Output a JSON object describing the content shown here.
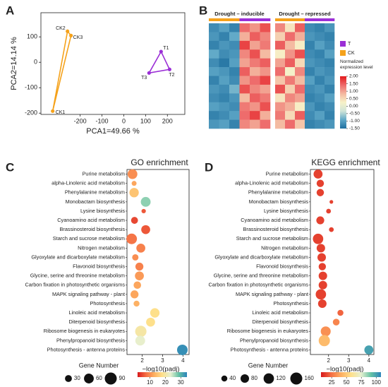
{
  "chart_data": [
    {
      "type": "scatter",
      "label": "A",
      "x_label": "PCA1=49.66 %",
      "y_label": "PCA2=14.14 %",
      "xlim": [
        -380,
        280
      ],
      "ylim": [
        -205,
        195
      ],
      "xticks": [
        -200,
        -100,
        0,
        100,
        200
      ],
      "yticks": [
        -200,
        -100,
        0,
        100
      ],
      "series": [
        {
          "name": "CK",
          "color": "#f5a21b",
          "labels": [
            "CK1",
            "CK2",
            "CK3"
          ],
          "x": [
            -326,
            -258,
            -242
          ],
          "y": [
            -192,
            122,
            105
          ]
        },
        {
          "name": "T",
          "color": "#9b2fd6",
          "labels": [
            "T1",
            "T2",
            "T3"
          ],
          "x": [
            171,
            210,
            116
          ],
          "y": [
            42,
            -28,
            -42
          ]
        }
      ]
    },
    {
      "type": "heatmap",
      "label": "B",
      "legend": [
        {
          "name": "T",
          "color": "#9b2fd6"
        },
        {
          "name": "CK",
          "color": "#f5a21b"
        }
      ],
      "column_colors": [
        "#f5a21b",
        "#f5a21b",
        "#f5a21b",
        "#9b2fd6",
        "#9b2fd6",
        "#9b2fd6"
      ],
      "colorbar": {
        "title": "Normalized expression level",
        "lim": [
          -1.5,
          2.0
        ],
        "colors": [
          "#1f6f9f",
          "#5fa8c8",
          "#cfe4d8",
          "#f7f2c8",
          "#f4b8a0",
          "#ee6a6a",
          "#e31a1c"
        ],
        "ticks": [
          {
            "value": 2,
            "label": "2.00"
          },
          {
            "value": 1.5,
            "label": "1.50"
          },
          {
            "value": 1,
            "label": "1.00"
          },
          {
            "value": 0.5,
            "label": "0.50"
          },
          {
            "value": 0,
            "label": "0.00"
          },
          {
            "value": -0.5,
            "label": "-0.50"
          },
          {
            "value": -1,
            "label": "-1.00"
          },
          {
            "value": -1.5,
            "label": "-1.50"
          }
        ]
      },
      "blocks": [
        {
          "title": "Drought – inducible",
          "rows": [
            [
              -1.2,
              -1.0,
              -1.3,
              1.4,
              1.1,
              1.6
            ],
            [
              -1.1,
              -1.3,
              -0.9,
              0.9,
              1.5,
              1.2
            ],
            [
              -1.3,
              -1.1,
              -1.2,
              1.7,
              1.0,
              1.3
            ],
            [
              -0.9,
              -1.2,
              -1.1,
              1.2,
              1.6,
              0.8
            ],
            [
              -1.2,
              -1.4,
              -1.0,
              1.0,
              1.3,
              1.5
            ],
            [
              -1.0,
              -1.1,
              -1.3,
              1.5,
              0.9,
              1.1
            ],
            [
              -1.3,
              -1.0,
              -1.2,
              1.1,
              1.4,
              1.7
            ],
            [
              -1.1,
              -1.2,
              -0.8,
              1.6,
              1.2,
              1.0
            ],
            [
              -1.2,
              -1.3,
              -1.1,
              0.8,
              1.5,
              1.3
            ],
            [
              -1.0,
              -1.1,
              -1.2,
              1.3,
              1.1,
              1.6
            ],
            [
              -1.3,
              -1.2,
              -1.0,
              1.4,
              1.7,
              0.9
            ],
            [
              -1.1,
              -1.0,
              -1.3,
              1.2,
              1.0,
              1.4
            ]
          ]
        },
        {
          "title": "Drought – repressed",
          "rows": [
            [
              1.2,
              0.4,
              1.5,
              -1.2,
              -1.3,
              -1.1
            ],
            [
              0.6,
              1.4,
              0.9,
              -1.1,
              -1.2,
              -1.3
            ],
            [
              1.5,
              0.8,
              0.3,
              -1.3,
              -1.0,
              -1.2
            ],
            [
              0.3,
              1.1,
              1.6,
              -1.2,
              -1.3,
              -1.0
            ],
            [
              1.0,
              1.5,
              0.5,
              -1.1,
              -1.2,
              -1.3
            ],
            [
              1.4,
              0.2,
              1.2,
              -1.3,
              -1.1,
              -1.2
            ],
            [
              0.7,
              1.3,
              0.8,
              -1.0,
              -1.3,
              -1.1
            ],
            [
              1.6,
              0.6,
              1.4,
              -1.2,
              -1.1,
              -1.3
            ],
            [
              0.4,
              1.2,
              1.0,
              -1.3,
              -1.2,
              -1.0
            ],
            [
              1.1,
              0.9,
              0.3,
              -1.1,
              -1.3,
              -1.2
            ],
            [
              1.3,
              0.5,
              1.5,
              -1.2,
              -1.0,
              -1.3
            ],
            [
              0.8,
              1.4,
              0.7,
              -1.3,
              -1.2,
              -1.1
            ]
          ]
        }
      ]
    },
    {
      "type": "bubble",
      "label": "C",
      "title": "GO enrichment",
      "x_label": "−log10(padj)",
      "categories": [
        "Purine metabolism",
        "alpha-Linolenic acid metabolism",
        "Phenylalanine metabolism",
        "Monobactam biosynthesis",
        "Lysine biosynthesis",
        "Cyanoamino acid metabolism",
        "Brassinosteroid biosynthesis",
        "Starch and sucrose metabolism",
        "Nitrogen metabolism",
        "Glyoxylate and dicarboxylate metabolism",
        "Flavonoid biosynthesis",
        "Glycine, serine and threonine metabolism",
        "Carbon fixation in photosynthetic organisms",
        "MAPK signaling pathway - plant",
        "Photosynthesis",
        "Linoleic acid metabolism",
        "Diterpenoid biosynthesis",
        "Ribosome biogenesis in eukaryotes",
        "Phenylpropanoid biosynthesis",
        "Photosynthesis - antenna proteins"
      ],
      "x": [
        1.52,
        1.6,
        1.6,
        2.17,
        2.07,
        1.62,
        2.17,
        1.48,
        1.93,
        1.66,
        1.86,
        1.86,
        1.76,
        1.62,
        1.72,
        2.62,
        2.41,
        1.93,
        1.9,
        3.97
      ],
      "sizes": [
        60,
        15,
        55,
        60,
        12,
        30,
        50,
        70,
        50,
        25,
        40,
        50,
        35,
        40,
        22,
        55,
        50,
        80,
        60,
        70
      ],
      "color_values": [
        10,
        12,
        15,
        27,
        6,
        5,
        6,
        8,
        9,
        10,
        9,
        11,
        12,
        12,
        13,
        18,
        18,
        20,
        23,
        33
      ],
      "xlim": [
        1.25,
        4.3
      ],
      "xticks": [
        2,
        3,
        4
      ],
      "size_legend": {
        "title": "Gene Number",
        "values": [
          30,
          60,
          90
        ]
      },
      "colorbar": {
        "lim": [
          2,
          34
        ],
        "ticks": [
          10,
          20,
          30
        ],
        "colors": [
          "#d7191c",
          "#f46d43",
          "#fdae61",
          "#fee08b",
          "#e6f0d0",
          "#66c2a5",
          "#2b83ba"
        ]
      }
    },
    {
      "type": "bubble",
      "label": "D",
      "title": "KEGG enrichment",
      "x_label": "−log10(padj)",
      "categories": [
        "Purine metabolism",
        "alpha-Linolenic acid metabolism",
        "Phenylalanine metabolism",
        "Monobactam biosynthesis",
        "Lysine biosynthesis",
        "Cyanoamino acid metabolism",
        "Brassinosteroid biosynthesis",
        "Starch and sucrose metabolism",
        "Nitrogen metabolism",
        "Glyoxylate and dicarboxylate metabolism",
        "Flavonoid biosynthesis",
        "Glycine, serine and threonine metabolism",
        "Carbon fixation in photosynthetic organisms",
        "MAPK signaling pathway - plant",
        "Photosynthesis",
        "Linoleic acid metabolism",
        "Diterpenoid biosynthesis",
        "Ribosome biogenesis in eukaryotes",
        "Phenylpropanoid biosynthesis",
        "Photosynthesis - antenna proteins"
      ],
      "x": [
        1.48,
        1.59,
        1.59,
        2.14,
        2.0,
        1.59,
        2.14,
        1.48,
        1.62,
        1.66,
        1.69,
        1.72,
        1.72,
        1.62,
        1.69,
        2.59,
        2.38,
        1.86,
        1.79,
        4.0
      ],
      "sizes": [
        90,
        60,
        60,
        15,
        25,
        70,
        25,
        120,
        80,
        80,
        60,
        80,
        80,
        120,
        80,
        40,
        50,
        110,
        140,
        90
      ],
      "color_values": [
        15,
        15,
        15,
        15,
        15,
        15,
        15,
        15,
        15,
        15,
        15,
        15,
        15,
        15,
        15,
        22,
        30,
        33,
        45,
        100
      ],
      "xlim": [
        1.1,
        4.25
      ],
      "xticks": [
        2,
        3,
        4
      ],
      "size_legend": {
        "title": "Gene Number",
        "values": [
          40,
          80,
          120,
          160
        ]
      },
      "colorbar": {
        "lim": [
          7,
          108
        ],
        "ticks": [
          25,
          50,
          75,
          100
        ],
        "colors": [
          "#d7191c",
          "#f46d43",
          "#fdae61",
          "#fee08b",
          "#e6f0d0",
          "#66c2a5",
          "#2b83ba"
        ]
      }
    }
  ]
}
